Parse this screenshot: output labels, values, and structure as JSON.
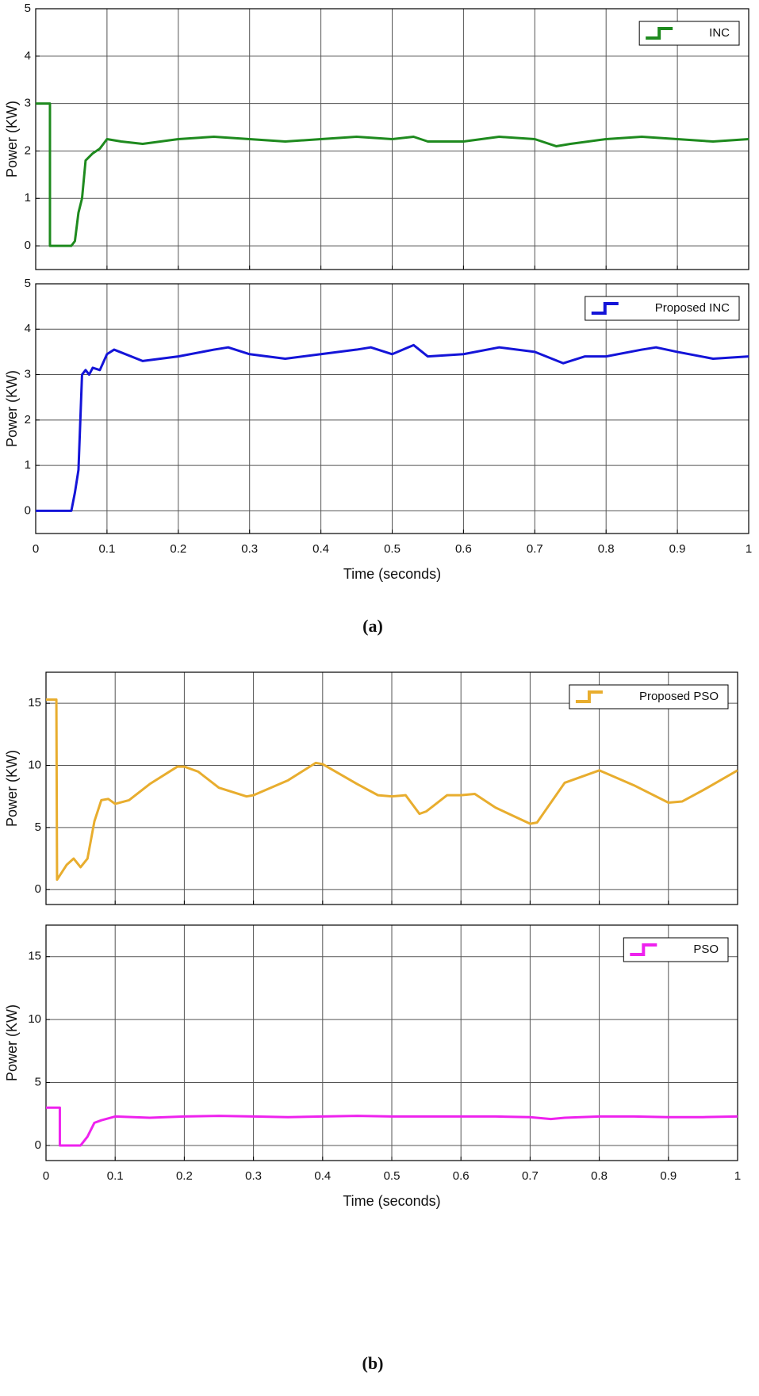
{
  "chart_data": [
    {
      "type": "line",
      "ylabel": "Power (KW)",
      "legend": "upper right",
      "grid": true,
      "xlim": [
        0,
        1
      ],
      "ylim": [
        -0.5,
        5
      ],
      "xticks": [
        0,
        0.1,
        0.2,
        0.3,
        0.4,
        0.5,
        0.6,
        0.7,
        0.8,
        0.9,
        1
      ],
      "yticks": [
        0,
        1,
        2,
        3,
        4,
        5
      ],
      "series": [
        {
          "name": "INC",
          "color": "#1e8a1e",
          "x": [
            0,
            0.02,
            0.02,
            0.05,
            0.055,
            0.06,
            0.065,
            0.07,
            0.08,
            0.09,
            0.1,
            0.12,
            0.15,
            0.2,
            0.25,
            0.3,
            0.35,
            0.4,
            0.45,
            0.5,
            0.53,
            0.55,
            0.6,
            0.65,
            0.7,
            0.73,
            0.75,
            0.8,
            0.85,
            0.9,
            0.95,
            1
          ],
          "values": [
            3,
            3,
            0,
            0,
            0.1,
            0.7,
            1,
            1.8,
            1.95,
            2.05,
            2.25,
            2.2,
            2.15,
            2.25,
            2.3,
            2.25,
            2.2,
            2.25,
            2.3,
            2.25,
            2.3,
            2.2,
            2.2,
            2.3,
            2.25,
            2.1,
            2.15,
            2.25,
            2.3,
            2.25,
            2.2,
            2.25
          ]
        }
      ]
    },
    {
      "type": "line",
      "ylabel": "Power (KW)",
      "xlabel": "Time (seconds)",
      "legend": "upper right",
      "grid": true,
      "xlim": [
        0,
        1
      ],
      "ylim": [
        -0.5,
        5
      ],
      "xticks": [
        0,
        0.1,
        0.2,
        0.3,
        0.4,
        0.5,
        0.6,
        0.7,
        0.8,
        0.9,
        1
      ],
      "yticks": [
        0,
        1,
        2,
        3,
        4,
        5
      ],
      "series": [
        {
          "name": "Proposed INC",
          "color": "#1414d8",
          "x": [
            0,
            0.05,
            0.055,
            0.06,
            0.065,
            0.07,
            0.075,
            0.08,
            0.09,
            0.1,
            0.11,
            0.15,
            0.2,
            0.25,
            0.27,
            0.3,
            0.35,
            0.4,
            0.45,
            0.47,
            0.5,
            0.53,
            0.55,
            0.6,
            0.65,
            0.7,
            0.74,
            0.77,
            0.8,
            0.85,
            0.87,
            0.9,
            0.95,
            1
          ],
          "values": [
            0,
            0,
            0.4,
            0.9,
            3,
            3.1,
            3,
            3.15,
            3.1,
            3.45,
            3.55,
            3.3,
            3.4,
            3.55,
            3.6,
            3.45,
            3.35,
            3.45,
            3.55,
            3.6,
            3.45,
            3.65,
            3.4,
            3.45,
            3.6,
            3.5,
            3.25,
            3.4,
            3.4,
            3.55,
            3.6,
            3.5,
            3.35,
            3.4
          ]
        }
      ]
    },
    {
      "type": "line",
      "ylabel": "Power (KW)",
      "legend": "upper right",
      "grid": true,
      "xlim": [
        0,
        1
      ],
      "ylim": [
        -1.2,
        17.5
      ],
      "xticks": [
        0,
        0.1,
        0.2,
        0.3,
        0.4,
        0.5,
        0.6,
        0.7,
        0.8,
        0.9,
        1
      ],
      "yticks": [
        0,
        5,
        10,
        15
      ],
      "series": [
        {
          "name": "Proposed PSO",
          "color": "#e8ad2e",
          "x": [
            0,
            0.015,
            0.016,
            0.03,
            0.04,
            0.05,
            0.06,
            0.07,
            0.08,
            0.09,
            0.1,
            0.12,
            0.15,
            0.19,
            0.2,
            0.22,
            0.25,
            0.29,
            0.3,
            0.35,
            0.39,
            0.4,
            0.45,
            0.48,
            0.5,
            0.52,
            0.54,
            0.55,
            0.58,
            0.6,
            0.62,
            0.65,
            0.7,
            0.71,
            0.72,
            0.75,
            0.8,
            0.85,
            0.9,
            0.92,
            0.95,
            1
          ],
          "values": [
            15.3,
            15.3,
            0.8,
            2,
            2.5,
            1.8,
            2.5,
            5.5,
            7.2,
            7.3,
            6.9,
            7.2,
            8.5,
            9.9,
            9.9,
            9.5,
            8.2,
            7.5,
            7.6,
            8.8,
            10.2,
            10.1,
            8.5,
            7.6,
            7.5,
            7.6,
            6.1,
            6.3,
            7.6,
            7.6,
            7.7,
            6.6,
            5.3,
            5.4,
            6.2,
            8.6,
            9.6,
            8.4,
            7,
            7.1,
            8,
            9.6
          ]
        }
      ]
    },
    {
      "type": "line",
      "ylabel": "Power (KW)",
      "xlabel": "Time (seconds)",
      "legend": "upper right",
      "grid": true,
      "xlim": [
        0,
        1
      ],
      "ylim": [
        -1.2,
        17.5
      ],
      "xticks": [
        0,
        0.1,
        0.2,
        0.3,
        0.4,
        0.5,
        0.6,
        0.7,
        0.8,
        0.9,
        1
      ],
      "yticks": [
        0,
        5,
        10,
        15
      ],
      "series": [
        {
          "name": "PSO",
          "color": "#ee22ee",
          "x": [
            0,
            0.02,
            0.02,
            0.05,
            0.06,
            0.07,
            0.08,
            0.1,
            0.15,
            0.2,
            0.25,
            0.3,
            0.35,
            0.4,
            0.45,
            0.5,
            0.55,
            0.6,
            0.65,
            0.7,
            0.73,
            0.75,
            0.8,
            0.85,
            0.9,
            0.95,
            1
          ],
          "values": [
            3,
            3,
            0,
            0,
            0.7,
            1.8,
            2,
            2.3,
            2.2,
            2.3,
            2.35,
            2.3,
            2.25,
            2.3,
            2.35,
            2.3,
            2.3,
            2.3,
            2.3,
            2.25,
            2.1,
            2.2,
            2.3,
            2.3,
            2.25,
            2.25,
            2.3
          ]
        }
      ]
    }
  ],
  "captions": [
    "(a)",
    "(b)"
  ]
}
